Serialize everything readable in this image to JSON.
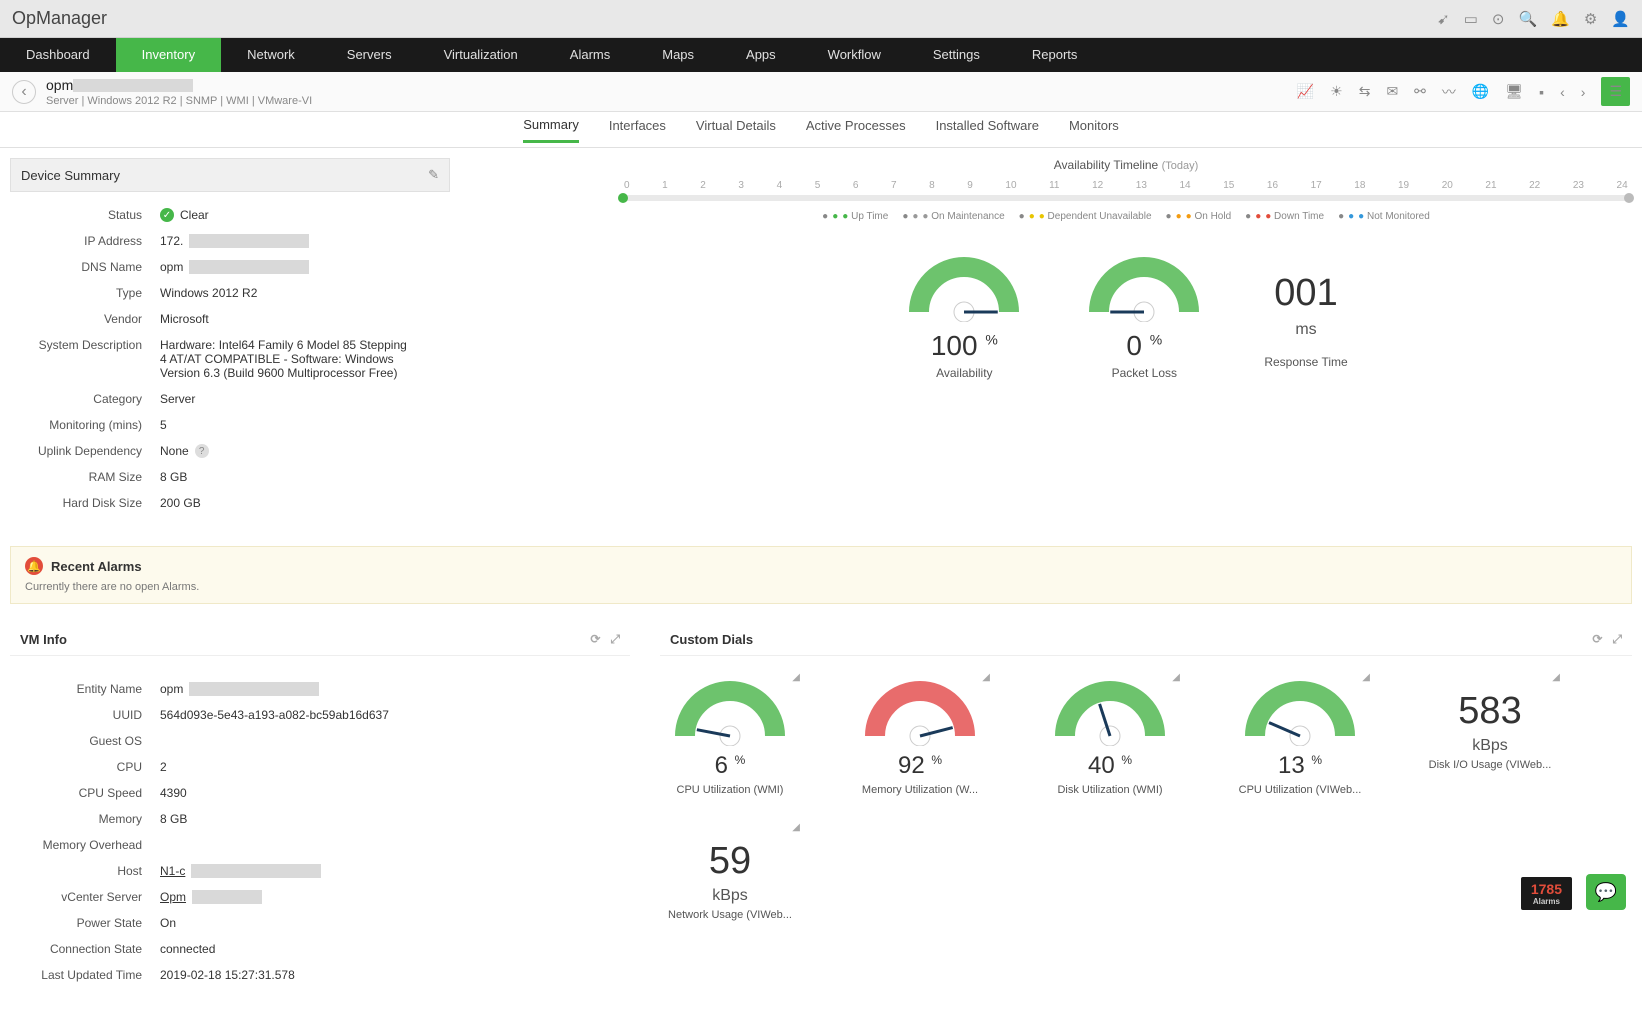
{
  "app_name": "OpManager",
  "main_nav": [
    "Dashboard",
    "Inventory",
    "Network",
    "Servers",
    "Virtualization",
    "Alarms",
    "Maps",
    "Apps",
    "Workflow",
    "Settings",
    "Reports"
  ],
  "main_nav_active": 1,
  "device": {
    "name_prefix": "opm",
    "crumbs": "Server | Windows 2012 R2 | SNMP | WMI | VMware-VI"
  },
  "sub_tabs": [
    "Summary",
    "Interfaces",
    "Virtual Details",
    "Active Processes",
    "Installed Software",
    "Monitors"
  ],
  "sub_tab_active": 0,
  "device_summary": {
    "title": "Device Summary",
    "rows": {
      "status_label": "Status",
      "status_value": "Clear",
      "ip_label": "IP Address",
      "ip_prefix": "172.",
      "dns_label": "DNS Name",
      "dns_prefix": "opm",
      "type_label": "Type",
      "type_value": "Windows 2012 R2",
      "vendor_label": "Vendor",
      "vendor_value": "Microsoft",
      "desc_label": "System Description",
      "desc_value": "Hardware: Intel64 Family 6 Model 85 Stepping 4 AT/AT COMPATIBLE - Software: Windows Version 6.3 (Build 9600 Multiprocessor Free)",
      "cat_label": "Category",
      "cat_value": "Server",
      "mon_label": "Monitoring (mins)",
      "mon_value": "5",
      "uplink_label": "Uplink Dependency",
      "uplink_value": "None",
      "ram_label": "RAM Size",
      "ram_value": "8 GB",
      "hdd_label": "Hard Disk Size",
      "hdd_value": "200 GB"
    }
  },
  "timeline": {
    "title": "Availability Timeline",
    "subtitle": "(Today)",
    "hours": [
      "0",
      "1",
      "2",
      "3",
      "4",
      "5",
      "6",
      "7",
      "8",
      "9",
      "10",
      "11",
      "12",
      "13",
      "14",
      "15",
      "16",
      "17",
      "18",
      "19",
      "20",
      "21",
      "22",
      "23",
      "24"
    ],
    "legend": [
      {
        "label": "Up Time",
        "color": "#46b749"
      },
      {
        "label": "On Maintenance",
        "color": "#999"
      },
      {
        "label": "Dependent Unavailable",
        "color": "#e8c500"
      },
      {
        "label": "On Hold",
        "color": "#f39c12"
      },
      {
        "label": "Down Time",
        "color": "#e24d3b"
      },
      {
        "label": "Not Monitored",
        "color": "#3498db"
      }
    ]
  },
  "top_gauges": {
    "availability": {
      "value": "100",
      "unit": "%",
      "label": "Availability",
      "pct": 100,
      "color": "#6dc36d"
    },
    "packet_loss": {
      "value": "0",
      "unit": "%",
      "label": "Packet Loss",
      "pct": 0,
      "color": "#6dc36d"
    },
    "response": {
      "value": "001",
      "unit": "ms",
      "label": "Response Time"
    }
  },
  "recent_alarms": {
    "title": "Recent Alarms",
    "message": "Currently there are no open Alarms."
  },
  "vm_info": {
    "title": "VM Info",
    "rows": {
      "entity_label": "Entity Name",
      "entity_prefix": "opm",
      "uuid_label": "UUID",
      "uuid_value": "564d093e-5e43-a193-a082-bc59ab16d637",
      "guest_label": "Guest OS",
      "guest_value": "",
      "cpu_label": "CPU",
      "cpu_value": "2",
      "cpuspd_label": "CPU Speed",
      "cpuspd_value": "4390",
      "mem_label": "Memory",
      "mem_value": "8 GB",
      "memov_label": "Memory Overhead",
      "memov_value": "",
      "host_label": "Host",
      "host_prefix": "N1-c",
      "vc_label": "vCenter Server",
      "vc_prefix": "Opm",
      "power_label": "Power State",
      "power_value": "On",
      "conn_label": "Connection State",
      "conn_value": "connected",
      "upd_label": "Last Updated Time",
      "upd_value": "2019-02-18 15:27:31.578"
    }
  },
  "custom_dials": {
    "title": "Custom Dials",
    "dials": [
      {
        "value": "6",
        "unit": "%",
        "label": "CPU Utilization (WMI)",
        "pct": 6,
        "color": "#6dc36d",
        "type": "gauge"
      },
      {
        "value": "92",
        "unit": "%",
        "label": "Memory Utilization (W...",
        "pct": 92,
        "color": "#e86c6c",
        "type": "gauge"
      },
      {
        "value": "40",
        "unit": "%",
        "label": "Disk Utilization (WMI)",
        "pct": 40,
        "color": "#6dc36d",
        "type": "gauge"
      },
      {
        "value": "13",
        "unit": "%",
        "label": "CPU Utilization (VIWeb...",
        "pct": 13,
        "color": "#6dc36d",
        "type": "gauge"
      },
      {
        "value": "583",
        "unit": "kBps",
        "label": "Disk I/O Usage (VIWeb...",
        "type": "number"
      },
      {
        "value": "59",
        "unit": "kBps",
        "label": "Network Usage (VIWeb...",
        "type": "number"
      }
    ]
  },
  "footer": {
    "alarm_count": "1785",
    "alarm_label": "Alarms"
  }
}
